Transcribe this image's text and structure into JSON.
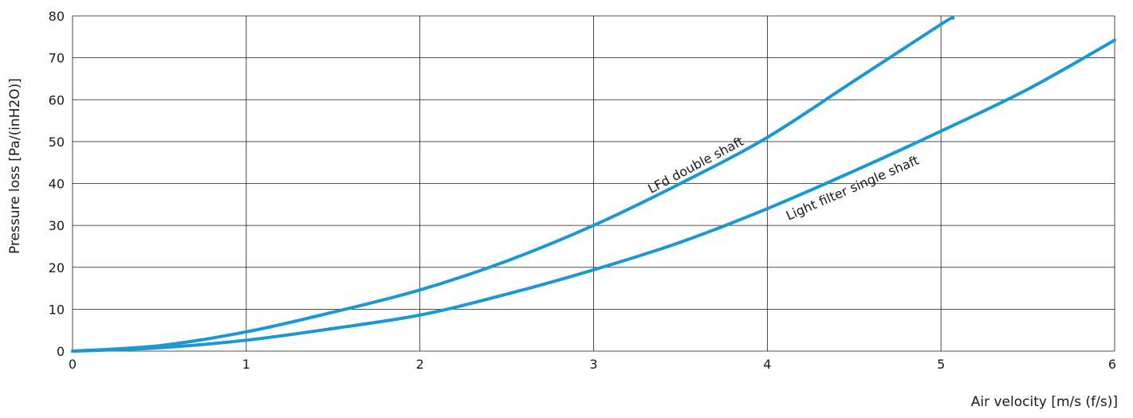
{
  "chart_data": {
    "type": "line",
    "title": "",
    "xlabel": "Air velocity [m/s (f/s)]",
    "ylabel": "Pressure loss [Pa/(inH2O)]",
    "xlim": [
      0,
      6
    ],
    "ylim": [
      0,
      80
    ],
    "xticks": [
      "0",
      "1",
      "2",
      "3",
      "4",
      "5",
      "6"
    ],
    "yticks": [
      "0",
      "10",
      "20",
      "30",
      "40",
      "50",
      "60",
      "70",
      "80"
    ],
    "grid": true,
    "legend": "none",
    "colors": {
      "series": "#1b97d4",
      "grid": "#1a1a1a"
    },
    "series": [
      {
        "name": "LFd double shaft",
        "x": [
          0,
          0.5,
          1,
          1.5,
          2,
          2.5,
          3,
          3.5,
          4,
          4.5,
          5,
          5.07
        ],
        "y": [
          0,
          1.3,
          4.6,
          9.3,
          14.6,
          21.5,
          30,
          40,
          51,
          64.5,
          78,
          79.5
        ]
      },
      {
        "name": "Light filter single shaft",
        "x": [
          0,
          0.5,
          1,
          1.5,
          2,
          2.5,
          3,
          3.5,
          4,
          4.5,
          5,
          5.5,
          6
        ],
        "y": [
          0,
          0.8,
          2.6,
          5.4,
          8.6,
          13.6,
          19.4,
          26,
          34,
          43,
          52.5,
          62.5,
          74.2
        ]
      }
    ],
    "annotations": [
      {
        "text": "LFd double shaft",
        "series": 0,
        "x": 3.6,
        "y": 43.5
      },
      {
        "text": "Light filter single shaft",
        "series": 1,
        "x": 4.5,
        "y": 38
      }
    ]
  }
}
